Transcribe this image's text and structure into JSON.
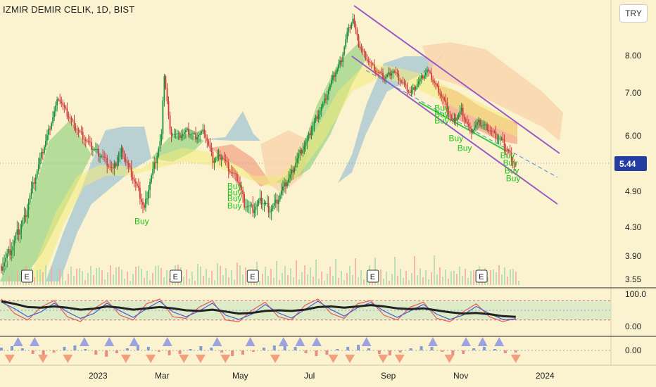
{
  "title": "IZMIR DEMIR CELIK, 1D, BIST",
  "currency_button": "TRY",
  "chart_data": [
    {
      "type": "candlestick",
      "title": "IZMIR DEMIR CELIK, 1D, BIST",
      "x_labels": [
        "2023",
        "Mar",
        "May",
        "Jul",
        "Sep",
        "Nov",
        "2024"
      ],
      "y_ticks": [
        3.55,
        3.9,
        4.3,
        4.9,
        5.44,
        6.0,
        7.0,
        8.0
      ],
      "y_tick_labels": [
        "3.55",
        "3.90",
        "4.30",
        "4.90",
        "5.44",
        "6.00",
        "7.00",
        "8.00"
      ],
      "last_price": 5.44,
      "last_price_label": "5.44",
      "close_path": [
        [
          0,
          3.75
        ],
        [
          8,
          4.05
        ],
        [
          16,
          4.45
        ],
        [
          24,
          5.2
        ],
        [
          32,
          6.0
        ],
        [
          40,
          6.9
        ],
        [
          46,
          6.5
        ],
        [
          54,
          6.1
        ],
        [
          62,
          5.8
        ],
        [
          70,
          5.6
        ],
        [
          78,
          5.3
        ],
        [
          84,
          5.7
        ],
        [
          90,
          5.3
        ],
        [
          96,
          4.9
        ],
        [
          100,
          4.6
        ],
        [
          104,
          5.1
        ],
        [
          108,
          5.5
        ],
        [
          112,
          6.0
        ],
        [
          114,
          7.5
        ],
        [
          118,
          6.1
        ],
        [
          124,
          6.0
        ],
        [
          130,
          6.1
        ],
        [
          136,
          6.0
        ],
        [
          142,
          6.1
        ],
        [
          148,
          5.5
        ],
        [
          154,
          5.6
        ],
        [
          160,
          5.3
        ],
        [
          166,
          5.1
        ],
        [
          170,
          4.7
        ],
        [
          176,
          4.6
        ],
        [
          182,
          4.75
        ],
        [
          188,
          4.6
        ],
        [
          192,
          4.7
        ],
        [
          196,
          4.9
        ],
        [
          202,
          5.2
        ],
        [
          208,
          5.6
        ],
        [
          214,
          5.9
        ],
        [
          220,
          6.4
        ],
        [
          226,
          6.8
        ],
        [
          232,
          7.4
        ],
        [
          238,
          7.9
        ],
        [
          242,
          8.6
        ],
        [
          246,
          9.0
        ],
        [
          250,
          8.3
        ],
        [
          256,
          7.9
        ],
        [
          262,
          7.6
        ],
        [
          268,
          7.4
        ],
        [
          274,
          7.6
        ],
        [
          280,
          7.3
        ],
        [
          286,
          7.0
        ],
        [
          292,
          7.3
        ],
        [
          298,
          7.6
        ],
        [
          304,
          7.2
        ],
        [
          310,
          6.8
        ],
        [
          316,
          6.3
        ],
        [
          322,
          6.6
        ],
        [
          328,
          6.1
        ],
        [
          334,
          6.3
        ],
        [
          340,
          6.2
        ],
        [
          346,
          6.0
        ],
        [
          350,
          5.9
        ],
        [
          356,
          5.6
        ],
        [
          360,
          5.4
        ]
      ],
      "buy_signals": [
        {
          "label": "Buy",
          "t": 98,
          "price": 4.4
        },
        {
          "label": "Buy",
          "t": 163,
          "price": 5.0
        },
        {
          "label": "Buy",
          "t": 163,
          "price": 4.88
        },
        {
          "label": "Buy",
          "t": 163,
          "price": 4.78
        },
        {
          "label": "Buy",
          "t": 163,
          "price": 4.66
        },
        {
          "label": "Buy",
          "t": 308,
          "price": 6.65
        },
        {
          "label": "Buy",
          "t": 308,
          "price": 6.5
        },
        {
          "label": "Buy",
          "t": 308,
          "price": 6.35
        },
        {
          "label": "Buy",
          "t": 318,
          "price": 5.95
        },
        {
          "label": "Buy",
          "t": 324,
          "price": 5.75
        },
        {
          "label": "Buy",
          "t": 354,
          "price": 5.6
        },
        {
          "label": "Buy",
          "t": 356,
          "price": 5.45
        },
        {
          "label": "Buy",
          "t": 357,
          "price": 5.3
        },
        {
          "label": "Buy",
          "t": 358,
          "price": 5.15
        }
      ],
      "earnings_markers": [
        {
          "label": "E",
          "t": 18
        },
        {
          "label": "E",
          "t": 122
        },
        {
          "label": "E",
          "t": 176
        },
        {
          "label": "E",
          "t": 260
        },
        {
          "label": "E",
          "t": 336
        }
      ]
    },
    {
      "type": "line",
      "name": "oscillator",
      "y_ticks": [
        0,
        100
      ],
      "y_tick_labels": [
        "0.00",
        "100.0"
      ],
      "series": [
        {
          "color": "#e85a5a",
          "values": [
            85,
            40,
            20,
            60,
            80,
            30,
            15,
            55,
            80,
            35,
            20,
            70,
            85,
            30,
            25,
            60,
            80,
            20,
            15,
            50,
            75,
            30,
            20,
            65,
            85,
            40,
            25,
            70,
            80,
            35,
            20,
            60,
            75,
            25,
            15,
            45,
            70,
            30,
            15,
            25
          ]
        },
        {
          "color": "#4a5fd4",
          "values": [
            75,
            55,
            30,
            45,
            72,
            45,
            25,
            40,
            72,
            48,
            28,
            55,
            78,
            45,
            30,
            48,
            72,
            35,
            22,
            38,
            68,
            42,
            26,
            52,
            78,
            52,
            32,
            58,
            74,
            48,
            28,
            48,
            68,
            38,
            22,
            35,
            62,
            40,
            22,
            22
          ]
        },
        {
          "color": "#222222",
          "values": [
            78,
            70,
            60,
            58,
            62,
            58,
            52,
            55,
            62,
            58,
            52,
            56,
            60,
            56,
            50,
            48,
            52,
            46,
            40,
            42,
            48,
            50,
            48,
            52,
            60,
            62,
            58,
            62,
            66,
            62,
            56,
            54,
            56,
            50,
            44,
            40,
            42,
            38,
            32,
            30
          ]
        }
      ]
    },
    {
      "type": "bar",
      "name": "histogram",
      "y_ticks": [
        0
      ],
      "y_tick_labels": [
        "0.00"
      ],
      "values": [
        0.4,
        0.6,
        0.3,
        -0.5,
        -0.8,
        -0.3,
        0.5,
        0.7,
        0.2,
        -0.6,
        -0.9,
        -0.4,
        0.3,
        0.8,
        0.5,
        -0.2,
        -0.7,
        -0.5,
        0.2,
        0.6,
        0.4,
        -0.3,
        -0.8,
        -0.6,
        -0.2,
        0.4,
        0.7,
        0.9,
        0.5,
        -0.4,
        -0.8,
        -0.6,
        0.2,
        0.5,
        0.8,
        0.3,
        -0.5,
        -0.7,
        -0.3,
        0.3,
        0.6,
        0.5,
        -0.2,
        -0.6,
        -0.5,
        0.3,
        0.5,
        0.2,
        -0.4,
        -0.3
      ],
      "signals_up": [
        2,
        4,
        10,
        13,
        16,
        20,
        26,
        30,
        34,
        36,
        38,
        44,
        52,
        56,
        58,
        60
      ],
      "signals_down": [
        1,
        5,
        8,
        15,
        18,
        22,
        24,
        27,
        33,
        40,
        42,
        46,
        48,
        54,
        62
      ]
    }
  ]
}
